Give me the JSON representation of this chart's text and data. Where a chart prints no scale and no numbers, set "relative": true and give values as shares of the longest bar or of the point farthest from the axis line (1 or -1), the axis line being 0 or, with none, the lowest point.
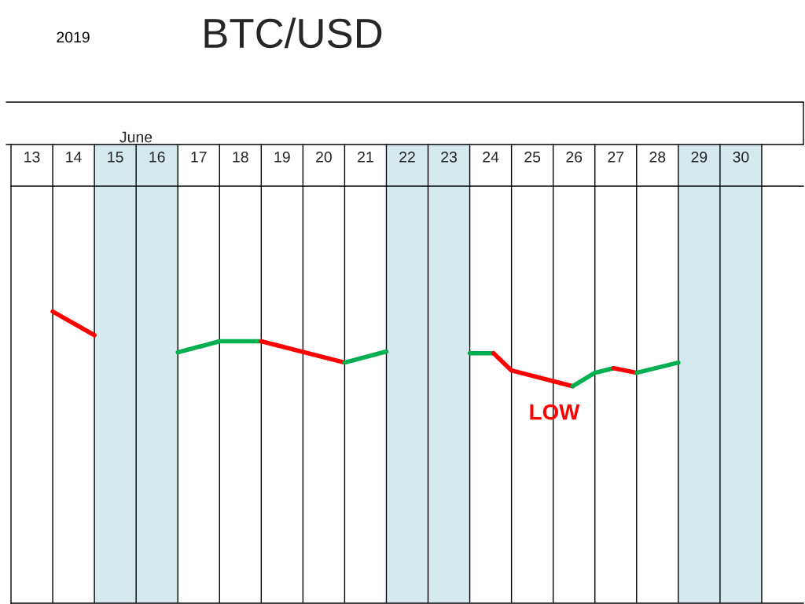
{
  "chart_data": {
    "type": "line",
    "title": "BTC/USD",
    "xlabel": "June",
    "relative": true,
    "annotations": [
      "2019",
      "LOW"
    ],
    "xlim": [
      13,
      32
    ],
    "xticks": [
      {
        "value": 13.5,
        "label": "13"
      },
      {
        "value": 14.5,
        "label": "14"
      },
      {
        "value": 15.5,
        "label": "15"
      },
      {
        "value": 16.5,
        "label": "16"
      },
      {
        "value": 17.5,
        "label": "17"
      },
      {
        "value": 18.5,
        "label": "18"
      },
      {
        "value": 19.5,
        "label": "19"
      },
      {
        "value": 20.5,
        "label": "20"
      },
      {
        "value": 21.5,
        "label": "21"
      },
      {
        "value": 22.5,
        "label": "22"
      },
      {
        "value": 23.5,
        "label": "23"
      },
      {
        "value": 24.5,
        "label": "24"
      },
      {
        "value": 25.5,
        "label": "25"
      },
      {
        "value": 26.5,
        "label": "26"
      },
      {
        "value": 27.5,
        "label": "27"
      },
      {
        "value": 28.5,
        "label": "28"
      },
      {
        "value": 29.5,
        "label": "29"
      },
      {
        "value": 30.5,
        "label": "30"
      },
      {
        "value": 14,
        "label": null
      },
      {
        "value": 15,
        "label": null
      },
      {
        "value": 16,
        "label": null
      },
      {
        "value": 17,
        "label": null
      },
      {
        "value": 18,
        "label": null
      },
      {
        "value": 19,
        "label": null
      },
      {
        "value": 20,
        "label": null
      },
      {
        "value": 21,
        "label": null
      },
      {
        "value": 22,
        "label": null
      },
      {
        "value": 23,
        "label": null
      },
      {
        "value": 24,
        "label": null
      },
      {
        "value": 25,
        "label": null
      },
      {
        "value": 26,
        "label": null
      },
      {
        "value": 27,
        "label": null
      },
      {
        "value": 28,
        "label": null
      },
      {
        "value": 29,
        "label": null
      },
      {
        "value": 30,
        "label": null
      },
      {
        "value": 31,
        "label": null
      }
    ],
    "grid": "x",
    "legend": false,
    "marker": "none",
    "line_style": "solid",
    "bands": [
      {
        "axis": "x",
        "from": 15,
        "to": 17,
        "color": "#d5e9ef"
      },
      {
        "axis": "x",
        "from": 22,
        "to": 24,
        "color": "#d5e9ef"
      },
      {
        "axis": "x",
        "from": 29,
        "to": 31,
        "color": "#d5e9ef"
      }
    ],
    "series": [
      {
        "color": "#ff0000",
        "x": [
          14,
          15
        ],
        "values": [
          1.0,
          0.919
        ]
      },
      {
        "color": "#00b050",
        "x": [
          17,
          18,
          19
        ],
        "values": [
          0.86,
          0.898,
          0.898
        ]
      },
      {
        "color": "#ff0000",
        "x": [
          19,
          21
        ],
        "values": [
          0.898,
          0.825
        ]
      },
      {
        "color": "#00b050",
        "x": [
          21,
          22
        ],
        "values": [
          0.825,
          0.863
        ]
      },
      {
        "color": "#00b050",
        "x": [
          24,
          24.57
        ],
        "values": [
          0.857,
          0.857
        ]
      },
      {
        "color": "#ff0000",
        "x": [
          24.57,
          25,
          26.47
        ],
        "values": [
          0.857,
          0.798,
          0.744
        ]
      },
      {
        "color": "#00b050",
        "x": [
          26.47,
          27,
          27.45
        ],
        "values": [
          0.744,
          0.79,
          0.806
        ]
      },
      {
        "color": "#ff0000",
        "x": [
          27.45,
          28
        ],
        "values": [
          0.806,
          0.79
        ]
      },
      {
        "color": "#00b050",
        "x": [
          28,
          29
        ],
        "values": [
          0.79,
          0.825
        ]
      }
    ]
  }
}
